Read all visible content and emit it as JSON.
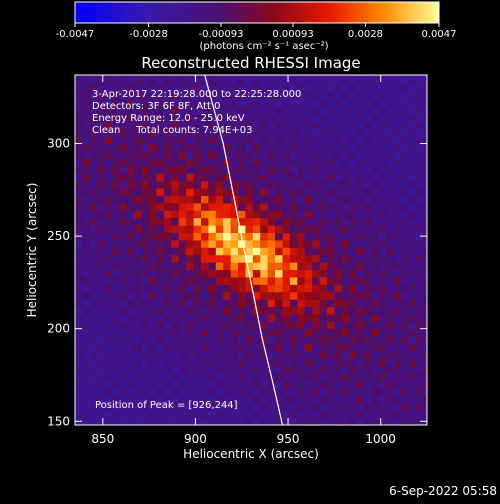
{
  "chart_data": {
    "type": "heatmap",
    "title": "Reconstructed RHESSI Image",
    "xlabel": "Heliocentric X (arcsec)",
    "ylabel": "Heliocentric Y (arcsec)",
    "xlim": [
      835,
      1025
    ],
    "ylim": [
      148,
      337
    ],
    "x_ticks": [
      850,
      900,
      950,
      1000
    ],
    "y_ticks": [
      150,
      200,
      250,
      300
    ],
    "colorbar": {
      "min": -0.0047,
      "max": 0.0047,
      "tick_values": [
        -0.0047,
        -0.0028,
        -0.00093,
        0.00093,
        0.0028,
        0.0047
      ],
      "tick_labels": [
        "-0.0047",
        "-0.0028",
        "-0.00093",
        "0.00093",
        "0.0028",
        "0.0047"
      ],
      "units_label": "(photons cm⁻² s⁻¹ asec⁻²)"
    },
    "annotations": [
      "3-Apr-2017 22:19:28.000 to 22:25:28.000",
      "Detectors: 3F 6F 8F, Att 0",
      "Energy Range: 12.0 - 25.0 keV",
      "Clean     Total counts: 7.94E+03"
    ],
    "peak_label": "Position of Peak = [926,244]",
    "peak": [
      926,
      244
    ],
    "limb": [
      [
        905,
        337
      ],
      [
        915,
        300
      ],
      [
        921,
        270
      ],
      [
        926,
        244
      ],
      [
        931,
        220
      ],
      [
        936,
        195
      ],
      [
        942,
        170
      ],
      [
        947,
        148
      ]
    ],
    "footer": "6-Sep-2022 05:58",
    "colors": {
      "background": "#000000",
      "axes": "#ffffff",
      "limb": "#ffffff"
    }
  }
}
